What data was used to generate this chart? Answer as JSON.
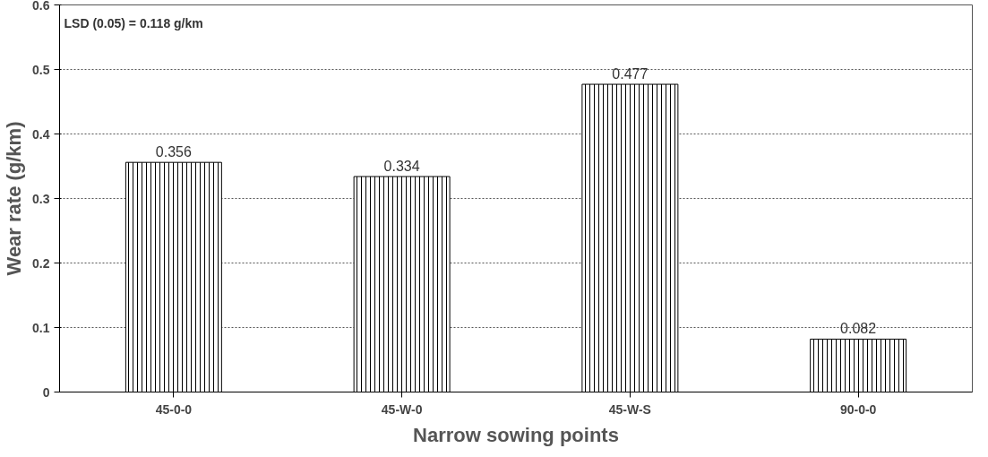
{
  "chart_data": {
    "type": "bar",
    "xlabel": "Narrow sowing points",
    "ylabel": "Wear rate (g/km)",
    "categories": [
      "45-0-0",
      "45-W-0",
      "45-W-S",
      "90-0-0"
    ],
    "values": [
      0.356,
      0.334,
      0.477,
      0.082
    ],
    "color": "#000000",
    "ylim": [
      0,
      0.6
    ],
    "yticks": [
      {
        "value": 0,
        "label": "0"
      },
      0.1,
      0.2,
      0.3,
      0.4,
      0.5,
      0.6
    ],
    "grid": "y",
    "data_labels": true,
    "annotations": [
      "LSD (0.05) = 0.118 g/km"
    ]
  }
}
